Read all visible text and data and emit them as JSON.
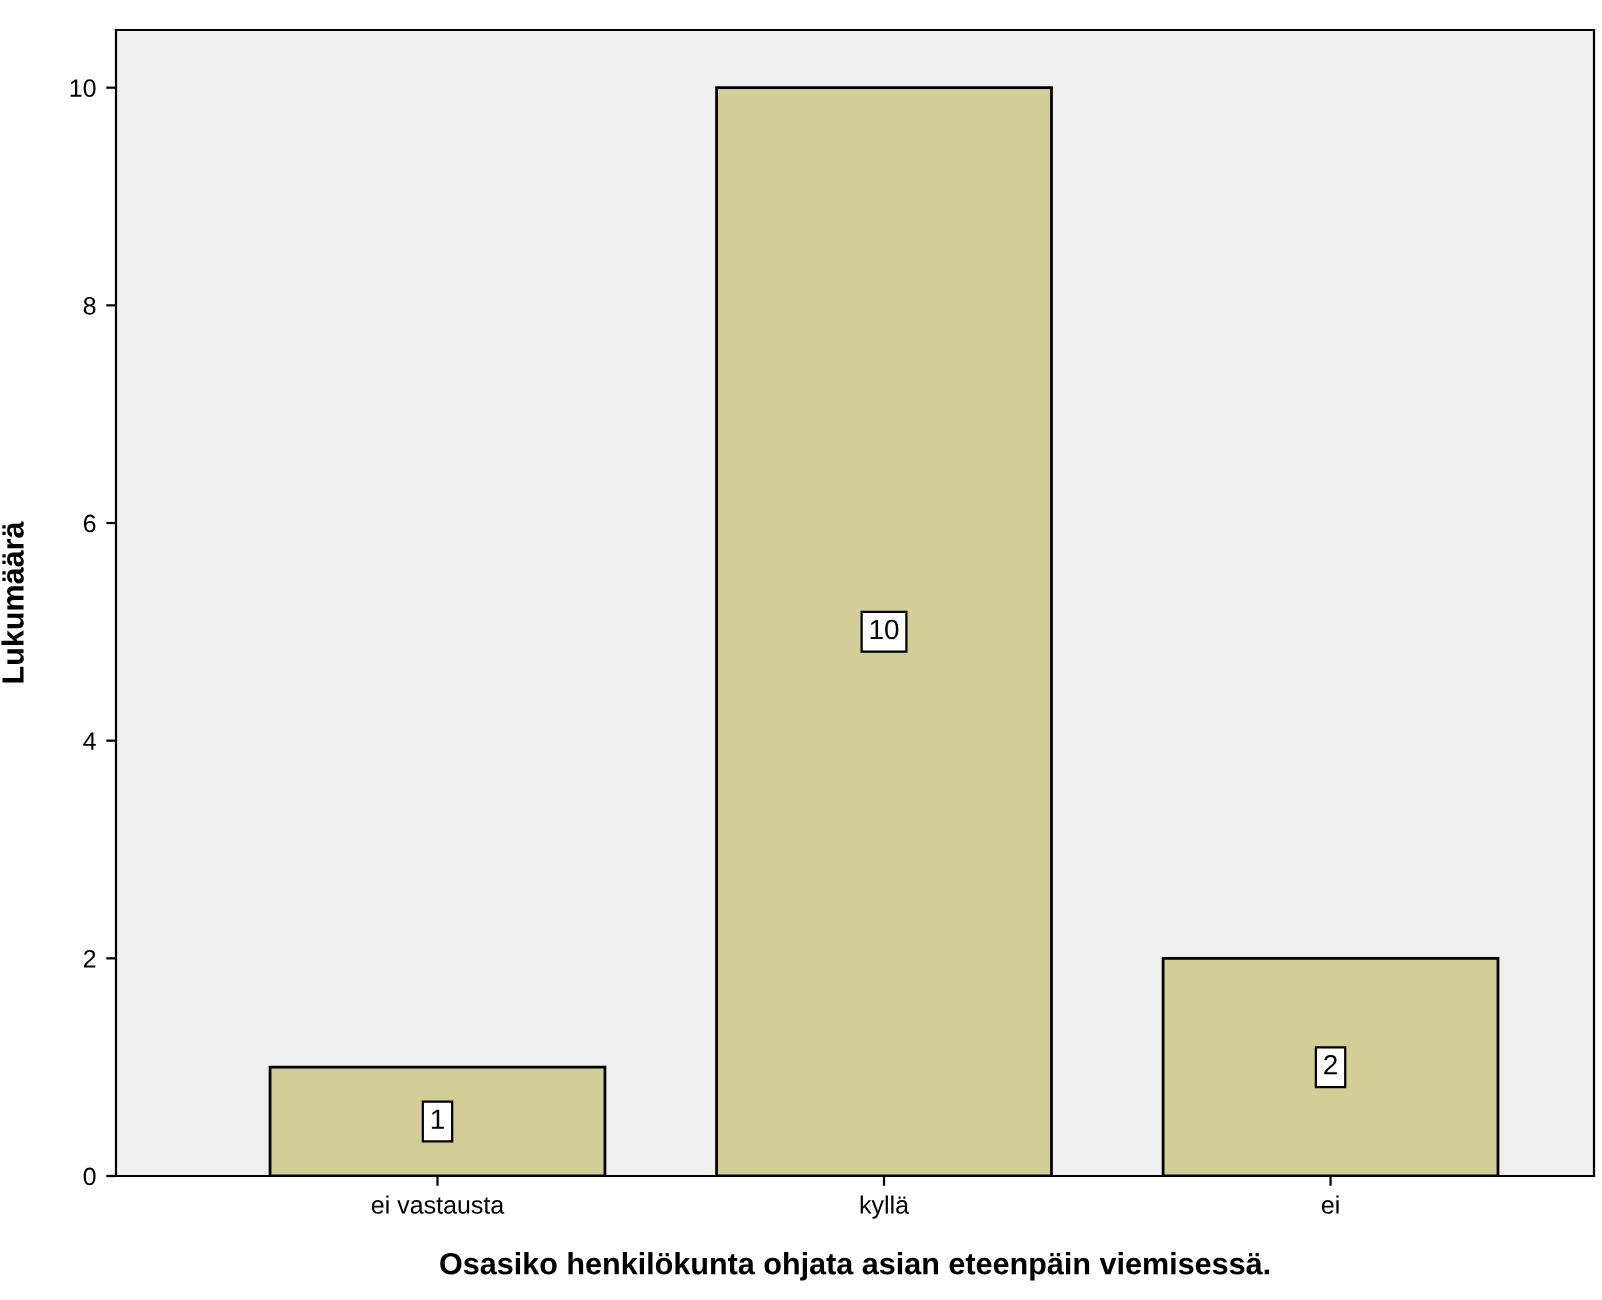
{
  "chart_data": {
    "type": "bar",
    "xlabel": "Osasiko henkilökunta ohjata asian eteenpäin viemisessä.",
    "ylabel": "Lukumäärä",
    "categories": [
      "ei vastausta",
      "kyllä",
      "ei"
    ],
    "values": [
      1,
      10,
      2
    ],
    "color": "#d3ce97",
    "ylim": [
      0,
      10.53
    ],
    "yticks": [
      0,
      2,
      4,
      6,
      8,
      10
    ],
    "grid": false,
    "data_labels": true
  }
}
